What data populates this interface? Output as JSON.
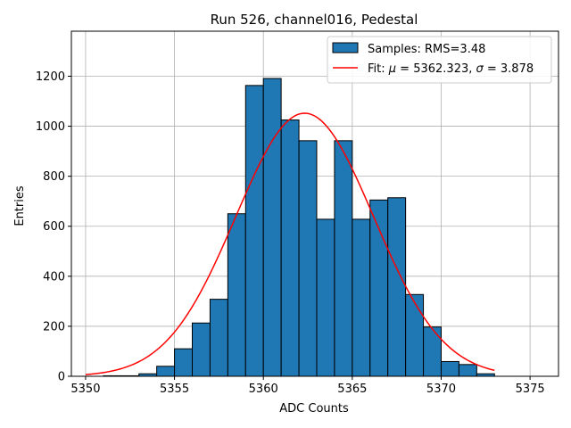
{
  "chart_data": {
    "type": "histogram",
    "title": "Run 526, channel016, Pedestal",
    "xlabel": "ADC Counts",
    "ylabel": "Entries",
    "xlim": [
      5349.2,
      5376.6
    ],
    "ylim": [
      0,
      1380
    ],
    "xticks": [
      5350,
      5355,
      5360,
      5365,
      5370,
      5375
    ],
    "yticks": [
      0,
      200,
      400,
      600,
      800,
      1000,
      1200
    ],
    "grid": true,
    "bin_width": 1,
    "bins": [
      {
        "x0": 5350,
        "x1": 5351,
        "count": 0
      },
      {
        "x0": 5351,
        "x1": 5352,
        "count": 2
      },
      {
        "x0": 5352,
        "x1": 5353,
        "count": 2
      },
      {
        "x0": 5353,
        "x1": 5354,
        "count": 10
      },
      {
        "x0": 5354,
        "x1": 5355,
        "count": 40
      },
      {
        "x0": 5355,
        "x1": 5356,
        "count": 110
      },
      {
        "x0": 5356,
        "x1": 5357,
        "count": 213
      },
      {
        "x0": 5357,
        "x1": 5358,
        "count": 308
      },
      {
        "x0": 5358,
        "x1": 5359,
        "count": 650
      },
      {
        "x0": 5359,
        "x1": 5360,
        "count": 1163
      },
      {
        "x0": 5360,
        "x1": 5361,
        "count": 1191
      },
      {
        "x0": 5361,
        "x1": 5362,
        "count": 1025
      },
      {
        "x0": 5362,
        "x1": 5363,
        "count": 942
      },
      {
        "x0": 5363,
        "x1": 5364,
        "count": 628
      },
      {
        "x0": 5364,
        "x1": 5365,
        "count": 942
      },
      {
        "x0": 5365,
        "x1": 5366,
        "count": 628
      },
      {
        "x0": 5366,
        "x1": 5367,
        "count": 705
      },
      {
        "x0": 5367,
        "x1": 5368,
        "count": 714
      },
      {
        "x0": 5368,
        "x1": 5369,
        "count": 327
      },
      {
        "x0": 5369,
        "x1": 5370,
        "count": 197
      },
      {
        "x0": 5370,
        "x1": 5371,
        "count": 59
      },
      {
        "x0": 5371,
        "x1": 5372,
        "count": 47
      },
      {
        "x0": 5372,
        "x1": 5373,
        "count": 10
      }
    ],
    "fit": {
      "type": "gaussian",
      "mu": 5362.323,
      "sigma": 3.878,
      "amplitude": 1052,
      "x_range": [
        5350,
        5373
      ]
    },
    "series": [
      {
        "name": "Samples: RMS=3.48",
        "kind": "histogram",
        "color": "#1f77b4"
      },
      {
        "name": "Fit: μ = 5362.323, σ = 3.878",
        "kind": "line",
        "color": "#ff0000"
      }
    ],
    "legend": {
      "position": "top-right",
      "entries": [
        {
          "prefix": "Samples: RMS=3.48",
          "mu_symbol": "",
          "mu_value": "",
          "sigma_symbol": "",
          "sigma_value": ""
        },
        {
          "prefix": "Fit: ",
          "mu_symbol": "μ",
          "mu_value": " = 5362.323, ",
          "sigma_symbol": "σ",
          "sigma_value": " = 3.878"
        }
      ]
    },
    "colors": {
      "bar_fill": "#1f77b4",
      "bar_edge": "#000000",
      "fit_line": "#ff0000",
      "grid": "#b0b0b0"
    }
  }
}
